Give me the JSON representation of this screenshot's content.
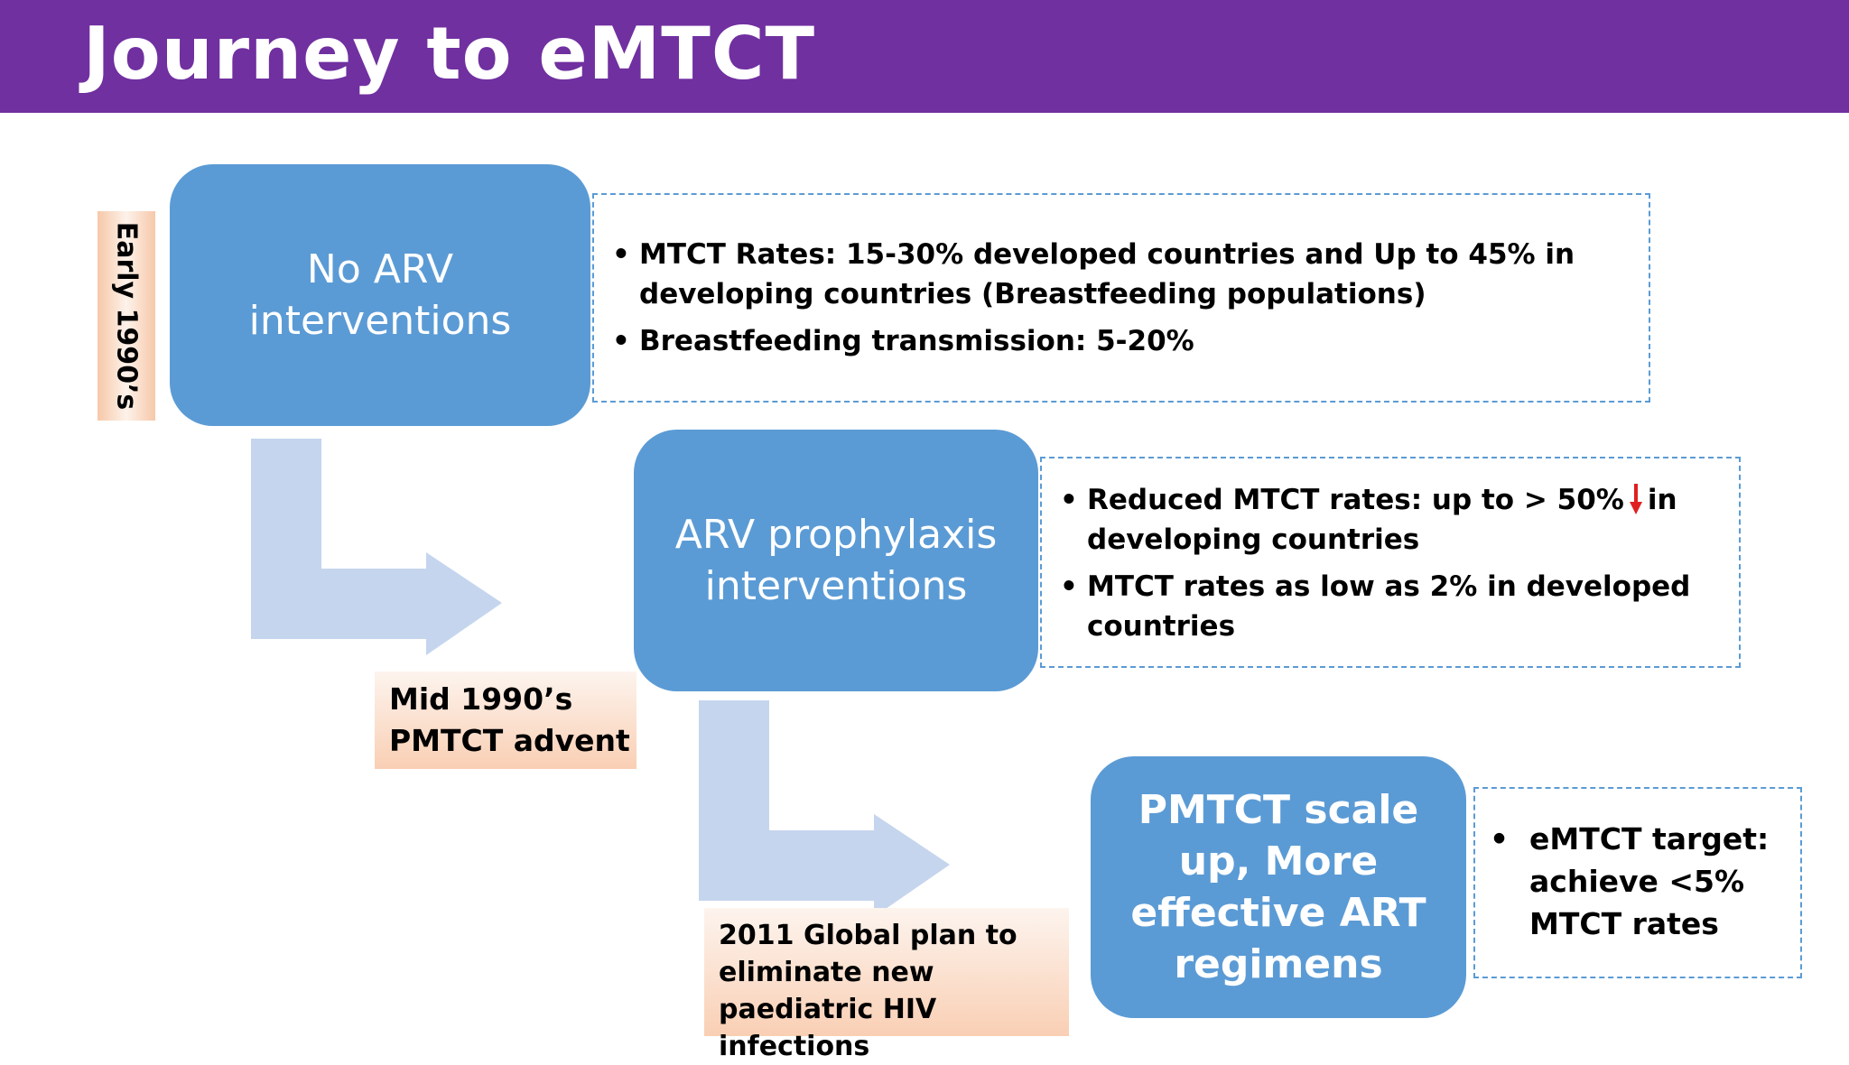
{
  "header": {
    "title": "Journey to eMTCT",
    "bg_color": "#7030a0"
  },
  "stages": [
    {
      "period": "Early 1990’s",
      "box_label": "No ARV interventions",
      "details": [
        "MTCT Rates: 15-30% developed countries and Up to 45% in developing countries (Breastfeeding populations)",
        "Breastfeeding transmission: 5-20%"
      ]
    },
    {
      "period": "Mid 1990’s PMTCT advent",
      "box_label": "ARV prophylaxis interventions",
      "details": [
        {
          "before": "Reduced MTCT rates: up to >  50%",
          "after": "in developing countries",
          "arrow_icon": "red-down-arrow-icon"
        },
        "MTCT rates as low as 2% in developed countries"
      ]
    },
    {
      "period": "2011 Global plan to eliminate new paediatric HIV infections",
      "box_label": "PMTCT scale up, More effective ART regimens",
      "details": [
        "eMTCT target: achieve <5% MTCT rates"
      ]
    }
  ],
  "colors": {
    "box": "#5b9bd5",
    "arrow": "#c5d5ee",
    "tag": "#f9cfb4",
    "down_arrow": "#e02020"
  }
}
